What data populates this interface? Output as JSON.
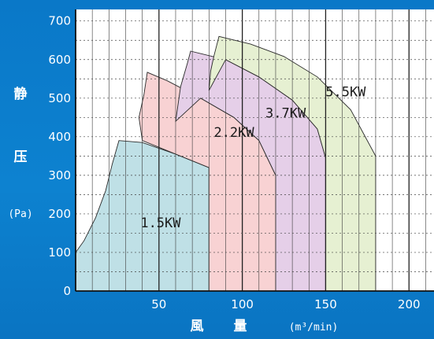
{
  "chart_data": {
    "type": "area",
    "title": "",
    "ylabel": {
      "char1": "静",
      "char2": "压",
      "unit": "(Pa)"
    },
    "xlabel": {
      "char1": "風",
      "char2": "量",
      "unit": "(m³/min)"
    },
    "xlim": [
      0,
      215
    ],
    "ylim": [
      0,
      730
    ],
    "x_ticks": [
      "50",
      "100",
      "150",
      "200"
    ],
    "y_ticks": [
      "0",
      "100",
      "200",
      "300",
      "400",
      "500",
      "600",
      "700"
    ],
    "grid": true,
    "series": [
      {
        "name": "1.5KW",
        "color": "#bfe0e6",
        "label_at": [
          51,
          165
        ],
        "boundary": [
          [
            0,
            100
          ],
          [
            5,
            130
          ],
          [
            12,
            190
          ],
          [
            18,
            260
          ],
          [
            22,
            330
          ],
          [
            26,
            390
          ],
          [
            40,
            385
          ],
          [
            60,
            355
          ],
          [
            80,
            320
          ],
          [
            80,
            0
          ],
          [
            0,
            0
          ]
        ]
      },
      {
        "name": "2.2KW",
        "color": "#f8d2d3",
        "label_at": [
          95,
          400
        ],
        "boundary": [
          [
            40,
            390
          ],
          [
            38,
            450
          ],
          [
            41,
            510
          ],
          [
            43,
            567
          ],
          [
            55,
            545
          ],
          [
            75,
            500
          ],
          [
            95,
            450
          ],
          [
            110,
            390
          ],
          [
            120,
            300
          ],
          [
            120,
            0
          ],
          [
            80,
            0
          ],
          [
            80,
            320
          ],
          [
            60,
            355
          ]
        ]
      },
      {
        "name": "3.7KW",
        "color": "#e5cfe8",
        "label_at": [
          126,
          450
        ],
        "boundary": [
          [
            60,
            440
          ],
          [
            63,
            530
          ],
          [
            67,
            590
          ],
          [
            69,
            622
          ],
          [
            90,
            600
          ],
          [
            110,
            555
          ],
          [
            130,
            495
          ],
          [
            145,
            420
          ],
          [
            150,
            345
          ],
          [
            150,
            0
          ],
          [
            120,
            0
          ],
          [
            120,
            300
          ],
          [
            110,
            390
          ],
          [
            95,
            450
          ],
          [
            75,
            500
          ]
        ]
      },
      {
        "name": "5.5KW",
        "color": "#e6f0d2",
        "label_at": [
          162,
          505
        ],
        "boundary": [
          [
            80,
            520
          ],
          [
            81,
            570
          ],
          [
            83,
            610
          ],
          [
            86,
            660
          ],
          [
            105,
            640
          ],
          [
            125,
            608
          ],
          [
            145,
            555
          ],
          [
            165,
            470
          ],
          [
            180,
            350
          ],
          [
            180,
            0
          ],
          [
            150,
            0
          ],
          [
            150,
            345
          ],
          [
            145,
            420
          ],
          [
            130,
            495
          ],
          [
            110,
            555
          ],
          [
            90,
            600
          ]
        ]
      }
    ]
  }
}
